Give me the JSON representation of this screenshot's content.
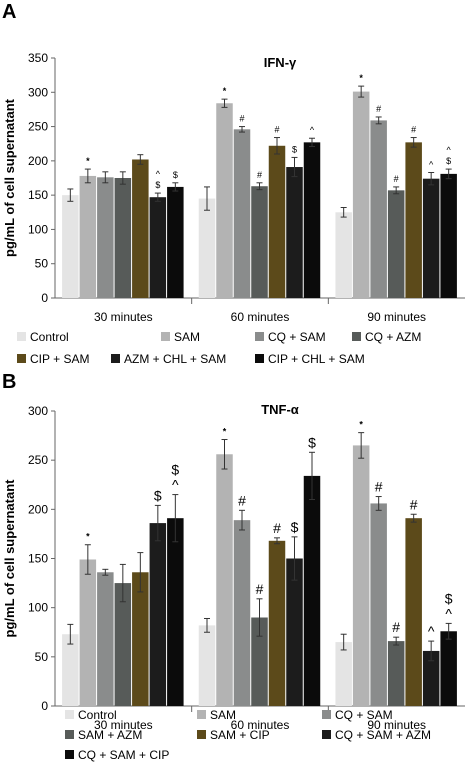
{
  "chart_data": [
    {
      "panel": "A",
      "type": "bar",
      "title": "IFN-γ",
      "ylabel": "pg/mL of cell supernatant",
      "xlabel": "",
      "ylim": [
        0,
        350
      ],
      "yticks": [
        0,
        50,
        100,
        150,
        200,
        250,
        300,
        350
      ],
      "categories": [
        "30 minutes",
        "60 minutes",
        "90 minutes"
      ],
      "grid": false,
      "legend_position": "bottom",
      "series": [
        {
          "name": "Control",
          "color": "#e4e4e4",
          "values": [
            150,
            145,
            125
          ],
          "errors": [
            9,
            17,
            7
          ],
          "annotations": [
            "",
            "",
            ""
          ]
        },
        {
          "name": "SAM",
          "color": "#b3b3b3",
          "values": [
            178,
            284,
            301
          ],
          "errors": [
            10,
            6,
            8
          ],
          "annotations": [
            "*",
            "*",
            "*"
          ]
        },
        {
          "name": "CQ + SAM",
          "color": "#8a8c8c",
          "values": [
            176,
            246,
            259
          ],
          "errors": [
            8,
            4,
            5
          ],
          "annotations": [
            "",
            "#",
            "#"
          ]
        },
        {
          "name": "CQ + AZM",
          "color": "#575b59",
          "values": [
            175,
            163,
            157
          ],
          "errors": [
            9,
            5,
            5
          ],
          "annotations": [
            "",
            "#",
            "#"
          ]
        },
        {
          "name": "CIP + SAM",
          "color": "#5c4a1a",
          "values": [
            202,
            222,
            227
          ],
          "errors": [
            7,
            12,
            7
          ],
          "annotations": [
            "",
            "#",
            "#"
          ]
        },
        {
          "name": "AZM + CHL + SAM",
          "color": "#1c1c1c",
          "values": [
            147,
            191,
            174
          ],
          "errors": [
            6,
            14,
            9
          ],
          "annotations": [
            "^\n$",
            "$",
            "^"
          ]
        },
        {
          "name": "CIP + CHL + SAM",
          "color": "#0b0b0b",
          "values": [
            162,
            227,
            181
          ],
          "errors": [
            6,
            6,
            7
          ],
          "annotations": [
            "$",
            "^",
            "^\n$"
          ]
        }
      ]
    },
    {
      "panel": "B",
      "type": "bar",
      "title": "TNF-α",
      "ylabel": "pg/mL of cell supernatant",
      "xlabel": "",
      "ylim": [
        0,
        300
      ],
      "yticks": [
        0,
        50,
        100,
        150,
        200,
        250,
        300
      ],
      "categories": [
        "30 minutes",
        "60 minutes",
        "90 minutes"
      ],
      "grid": false,
      "legend_position": "bottom",
      "series": [
        {
          "name": "Control",
          "color": "#e4e4e4",
          "values": [
            73,
            82,
            65
          ],
          "errors": [
            10,
            7,
            8
          ],
          "annotations": [
            "",
            "",
            ""
          ]
        },
        {
          "name": "SAM",
          "color": "#b3b3b3",
          "values": [
            149,
            256,
            265
          ],
          "errors": [
            15,
            15,
            13
          ],
          "annotations": [
            "*",
            "*",
            "*"
          ]
        },
        {
          "name": "CQ + SAM",
          "color": "#8a8c8c",
          "values": [
            136,
            189,
            206
          ],
          "errors": [
            3,
            10,
            7
          ],
          "annotations": [
            "",
            "#",
            "#"
          ]
        },
        {
          "name": "SAM + AZM",
          "color": "#575b59",
          "values": [
            125,
            90,
            66
          ],
          "errors": [
            19,
            19,
            4
          ],
          "annotations": [
            "",
            "#",
            "#"
          ]
        },
        {
          "name": "SAM + CIP",
          "color": "#5c4a1a",
          "values": [
            136,
            168,
            191
          ],
          "errors": [
            20,
            3,
            4
          ],
          "annotations": [
            "",
            "#",
            "#"
          ]
        },
        {
          "name": "CQ + SAM + AZM",
          "color": "#1c1c1c",
          "values": [
            186,
            150,
            56
          ],
          "errors": [
            18,
            22,
            10
          ],
          "annotations": [
            "$",
            "$",
            "^"
          ]
        },
        {
          "name": "CQ + SAM + CIP",
          "color": "#0b0b0b",
          "values": [
            191,
            234,
            76
          ],
          "errors": [
            24,
            24,
            8
          ],
          "annotations": [
            "$\n^",
            "$",
            "$\n^"
          ]
        }
      ]
    }
  ]
}
